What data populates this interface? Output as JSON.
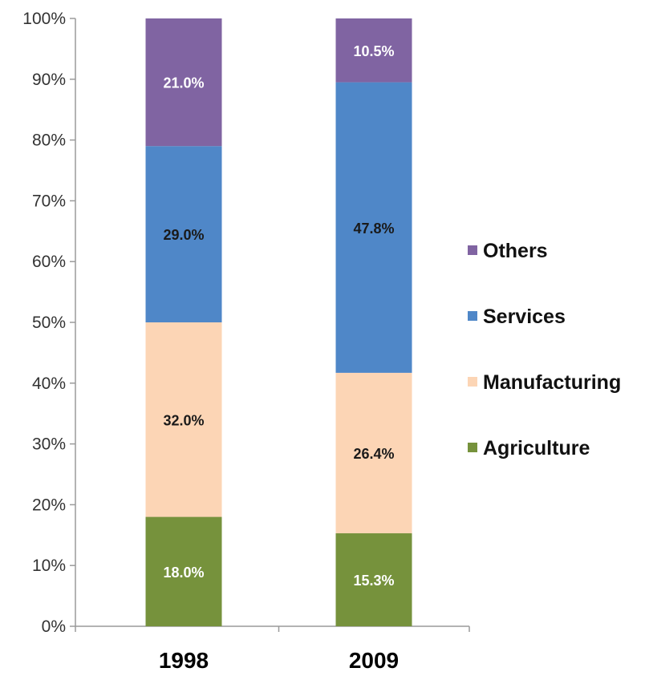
{
  "chart_data": {
    "type": "bar",
    "stacked": true,
    "categories": [
      "1998",
      "2009"
    ],
    "series": [
      {
        "name": "Agriculture",
        "values": [
          18.0,
          15.3
        ],
        "labels": [
          "18.0%",
          "15.3%"
        ],
        "color": "#76923c",
        "label_color": "#ffffff"
      },
      {
        "name": "Manufacturing",
        "values": [
          32.0,
          26.4
        ],
        "labels": [
          "32.0%",
          "26.4%"
        ],
        "color": "#fcd5b5",
        "label_color": "#1a1a1a"
      },
      {
        "name": "Services",
        "values": [
          29.0,
          47.8
        ],
        "labels": [
          "29.0%",
          "47.8%"
        ],
        "color": "#4f87c8",
        "label_color": "#1a1a1a"
      },
      {
        "name": "Others",
        "values": [
          21.0,
          10.5
        ],
        "labels": [
          "21.0%",
          "10.5%"
        ],
        "color": "#8064a2",
        "label_color": "#ffffff"
      }
    ],
    "y_ticks": [
      "0%",
      "10%",
      "20%",
      "30%",
      "40%",
      "50%",
      "60%",
      "70%",
      "80%",
      "90%",
      "100%"
    ],
    "ylim": [
      0,
      100
    ],
    "legend_position": "right",
    "legend_order": [
      "Others",
      "Services",
      "Manufacturing",
      "Agriculture"
    ],
    "grid": false,
    "title": "",
    "xlabel": "",
    "ylabel": ""
  }
}
